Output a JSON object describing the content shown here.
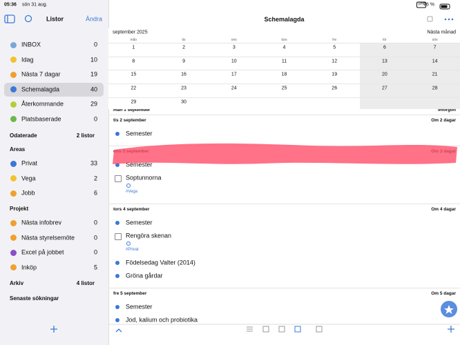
{
  "status_bar": {
    "time": "05:36",
    "date": "sön 31 aug.",
    "vpn": "VPN",
    "battery": "76 %"
  },
  "sidebar": {
    "title": "Listor",
    "edit": "Ändra",
    "lists": [
      {
        "name": "INBOX",
        "count": 0,
        "color": "#7aa7d8"
      },
      {
        "name": "Idag",
        "count": 10,
        "color": "#f2c230"
      },
      {
        "name": "Nästa 7 dagar",
        "count": 19,
        "color": "#f0a030"
      },
      {
        "name": "Schemalagda",
        "count": 40,
        "color": "#3b78d8"
      },
      {
        "name": "Återkommande",
        "count": 29,
        "color": "#b8cc3a"
      },
      {
        "name": "Platsbaserade",
        "count": 0,
        "color": "#6cb84a"
      }
    ],
    "undated": {
      "label": "Odaterade",
      "info": "2 listor"
    },
    "areas": {
      "title": "Areas",
      "items": [
        {
          "name": "Privat",
          "count": 33,
          "color": "#3b78d8"
        },
        {
          "name": "Vega",
          "count": 2,
          "color": "#f2c230"
        },
        {
          "name": "Jobb",
          "count": 6,
          "color": "#f0a030"
        }
      ]
    },
    "projects": {
      "title": "Projekt",
      "items": [
        {
          "name": "Nästa infobrev",
          "count": 0,
          "color": "#f0a030"
        },
        {
          "name": "Nästa styrelsemöte",
          "count": 0,
          "color": "#f0a030"
        },
        {
          "name": "Excel på jobbet",
          "count": 0,
          "color": "#8a4fc8"
        },
        {
          "name": "Inköp",
          "count": 5,
          "color": "#f0a030"
        }
      ]
    },
    "archive": {
      "label": "Arkiv",
      "info": "4 listor"
    },
    "recent_searches": "Senaste sökningar"
  },
  "main": {
    "title": "Schemalagda",
    "calendar": {
      "month": "september 2025",
      "next": "Nästa månad",
      "weekdays": [
        "mån",
        "tis",
        "ons",
        "tors",
        "fre",
        "lör",
        "sön"
      ],
      "weeks": [
        [
          1,
          2,
          3,
          4,
          5,
          6,
          7
        ],
        [
          8,
          9,
          10,
          11,
          12,
          13,
          14
        ],
        [
          15,
          16,
          17,
          18,
          19,
          20,
          21
        ],
        [
          22,
          23,
          24,
          25,
          26,
          27,
          28
        ],
        [
          29,
          30
        ]
      ]
    },
    "days": [
      {
        "date": "mån 1 september",
        "relative": "imorgon",
        "tasks": []
      },
      {
        "date": "tis 2 september",
        "relative": "Om 2 dagar",
        "tasks": [
          {
            "title": "Semester",
            "checkbox": false
          }
        ]
      },
      {
        "date": "ons 3 september",
        "relative": "Om 3 dagar",
        "tasks": [
          {
            "title": "Semester",
            "checkbox": false
          },
          {
            "title": "Soptunnorna",
            "checkbox": true,
            "tag": "#Vega"
          }
        ]
      },
      {
        "date": "tors 4 september",
        "relative": "Om 4 dagar",
        "tasks": [
          {
            "title": "Semester",
            "checkbox": false
          },
          {
            "title": "Rengöra skenan",
            "checkbox": true,
            "tag": "#Privat"
          },
          {
            "title": "Födelsedag Valter (2014)",
            "checkbox": false
          },
          {
            "title": "Gröna gårdar",
            "checkbox": false
          }
        ]
      },
      {
        "date": "fre 5 september",
        "relative": "Om 5 dagar",
        "tasks": [
          {
            "title": "Semester",
            "checkbox": false
          },
          {
            "title": "Jod, kalium och probiotika",
            "checkbox": false
          }
        ]
      }
    ]
  }
}
